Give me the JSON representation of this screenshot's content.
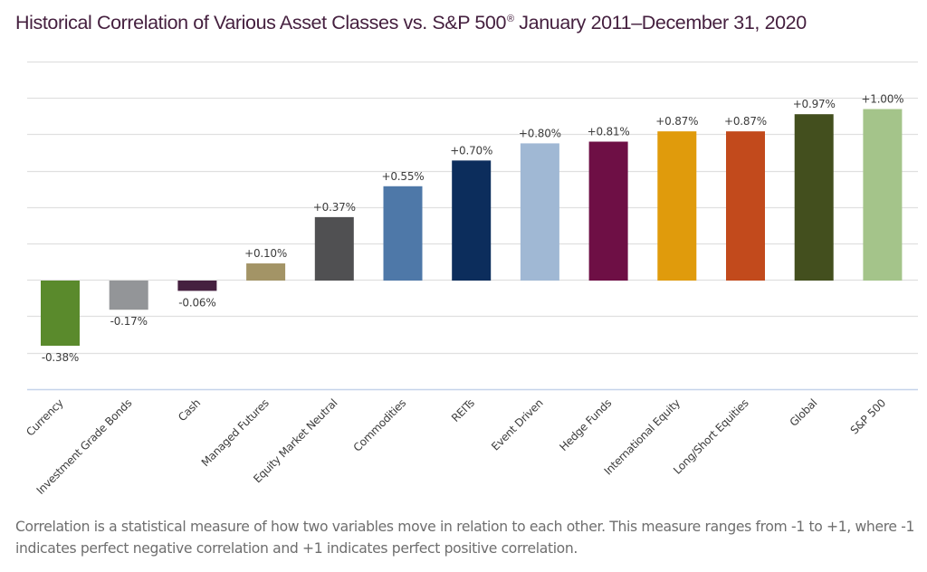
{
  "title": {
    "main": "Historical Correlation of Various Asset Classes vs. S&P 500",
    "registered_mark": "®",
    "period": " January 2011–December 31, 2020"
  },
  "caption": "Correlation is a statistical measure of how two variables move in relation to each other. This measure ranges from -1 to +1, where -1 indicates perfect negative correlation and +1 indicates perfect positive correlation.",
  "chart_data": {
    "type": "bar",
    "title": "Historical Correlation of Various Asset Classes vs. S&P 500® January 2011–December 31, 2020",
    "xlabel": "",
    "ylabel": "",
    "ylim": [
      -0.63,
      1.27
    ],
    "grid": true,
    "legend": "none",
    "categories": [
      "Currency",
      "Investment Grade Bonds",
      "Cash",
      "Managed Futures",
      "Equity Market Neutral",
      "Commodities",
      "REITs",
      "Event Driven",
      "Hedge Funds",
      "International Equity",
      "Long/Short Equities",
      "Global",
      "S&P 500"
    ],
    "values": [
      -0.38,
      -0.17,
      -0.06,
      0.1,
      0.37,
      0.55,
      0.7,
      0.8,
      0.81,
      0.87,
      0.87,
      0.97,
      1.0
    ],
    "data_labels": [
      "-0.38%",
      "-0.17%",
      "-0.06%",
      "+0.10%",
      "+0.37%",
      "+0.55%",
      "+0.70%",
      "+0.80%",
      "+0.81%",
      "+0.87%",
      "+0.87%",
      "+0.97%",
      "+1.00%"
    ],
    "colors": [
      "#5a8a2c",
      "#939598",
      "#45203f",
      "#a39466",
      "#505052",
      "#4e78a8",
      "#0c2d5c",
      "#a0b8d4",
      "#6e0f45",
      "#e09b0c",
      "#c24a1c",
      "#434f1e",
      "#a4c48a"
    ]
  },
  "colors": {
    "title": "#45203f",
    "gridline": "#e0e0e0",
    "axis": "#c5d3ea",
    "caption": "#6e6e6e"
  }
}
